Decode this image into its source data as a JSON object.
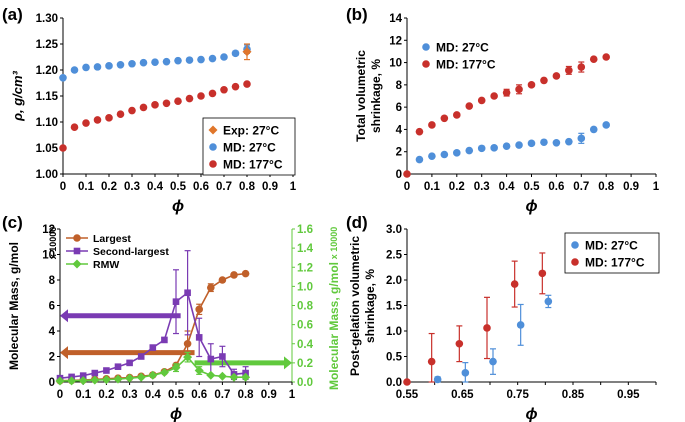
{
  "figure": {
    "panel_labels": [
      "(a)",
      "(b)",
      "(c)",
      "(d)"
    ]
  },
  "colors": {
    "blue": "#4f8fd9",
    "red": "#c8302b",
    "orange": "#e0762b",
    "orange_line": "#c0602a",
    "purple": "#7a3bb3",
    "green": "#61c93d",
    "axis": "#000000",
    "grid_text": "#000000"
  },
  "chart_data": [
    {
      "id": "a",
      "type": "scatter",
      "title": "",
      "xlabel": "ϕ",
      "ylabel": "ρ, g/cm³",
      "xlim": [
        0,
        1
      ],
      "ylim": [
        1.0,
        1.3
      ],
      "xticks": [
        "0",
        "0.1",
        "0.2",
        "0.3",
        "0.4",
        "0.5",
        "0.6",
        "0.7",
        "0.8",
        "0.9",
        "1"
      ],
      "yticks": [
        "1.00",
        "1.05",
        "1.10",
        "1.15",
        "1.20",
        "1.25",
        "1.30"
      ],
      "legend": {
        "placement": "bottom-right",
        "entries": [
          "Exp: 27°C",
          "MD: 27°C",
          "MD: 177°C"
        ]
      },
      "series": [
        {
          "name": "Exp: 27°C",
          "marker": "diamond",
          "color": "orange",
          "x": [
            0.8
          ],
          "y": [
            1.235
          ],
          "err": [
            0.015
          ]
        },
        {
          "name": "MD: 27°C",
          "marker": "circle",
          "color": "blue",
          "x": [
            0,
            0.05,
            0.1,
            0.15,
            0.2,
            0.25,
            0.3,
            0.35,
            0.4,
            0.45,
            0.5,
            0.55,
            0.6,
            0.65,
            0.7,
            0.75,
            0.8
          ],
          "y": [
            1.185,
            1.2,
            1.205,
            1.206,
            1.208,
            1.21,
            1.212,
            1.214,
            1.215,
            1.216,
            1.218,
            1.219,
            1.22,
            1.222,
            1.225,
            1.232,
            1.24
          ],
          "err": [
            0.002,
            0.002,
            0.002,
            0.002,
            0.002,
            0.002,
            0.002,
            0.002,
            0.002,
            0.002,
            0.002,
            0.002,
            0.002,
            0.002,
            0.002,
            0.004,
            0.008
          ]
        },
        {
          "name": "MD: 177°C",
          "marker": "circle",
          "color": "red",
          "x": [
            0,
            0.05,
            0.1,
            0.15,
            0.2,
            0.25,
            0.3,
            0.35,
            0.4,
            0.45,
            0.5,
            0.55,
            0.6,
            0.65,
            0.7,
            0.75,
            0.8
          ],
          "y": [
            1.05,
            1.09,
            1.098,
            1.104,
            1.108,
            1.115,
            1.122,
            1.128,
            1.133,
            1.136,
            1.14,
            1.145,
            1.15,
            1.155,
            1.162,
            1.168,
            1.173
          ],
          "err": [
            0.002,
            0.002,
            0.002,
            0.002,
            0.002,
            0.002,
            0.002,
            0.002,
            0.002,
            0.002,
            0.002,
            0.002,
            0.002,
            0.002,
            0.002,
            0.002,
            0.002
          ]
        }
      ]
    },
    {
      "id": "b",
      "type": "scatter",
      "title": "",
      "xlabel": "ϕ",
      "ylabel_lines": [
        "Total volumetric",
        "shrinkage, %"
      ],
      "xlim": [
        0,
        1
      ],
      "ylim": [
        0,
        14
      ],
      "xticks": [
        "0",
        "0.1",
        "0.2",
        "0.3",
        "0.4",
        "0.5",
        "0.6",
        "0.7",
        "0.8",
        "0.9",
        "1"
      ],
      "yticks": [
        "0",
        "2",
        "4",
        "6",
        "8",
        "10",
        "12",
        "14"
      ],
      "legend": {
        "placement": "top-left",
        "entries": [
          "MD: 27°C",
          "MD: 177°C"
        ]
      },
      "series": [
        {
          "name": "MD: 27°C",
          "marker": "circle",
          "color": "blue",
          "x": [
            0.05,
            0.1,
            0.15,
            0.2,
            0.25,
            0.3,
            0.35,
            0.4,
            0.45,
            0.5,
            0.55,
            0.6,
            0.65,
            0.7,
            0.75,
            0.8
          ],
          "y": [
            1.3,
            1.6,
            1.75,
            1.9,
            2.1,
            2.3,
            2.35,
            2.5,
            2.6,
            2.75,
            2.85,
            2.8,
            2.9,
            3.2,
            4.0,
            4.4
          ],
          "err": [
            0.15,
            0.15,
            0.15,
            0.15,
            0.15,
            0.15,
            0.15,
            0.15,
            0.15,
            0.15,
            0.15,
            0.15,
            0.15,
            0.45,
            0.2,
            0.15
          ]
        },
        {
          "name": "MD: 177°C",
          "marker": "circle",
          "color": "red",
          "x": [
            0,
            0.05,
            0.1,
            0.15,
            0.2,
            0.25,
            0.3,
            0.35,
            0.4,
            0.45,
            0.5,
            0.55,
            0.6,
            0.65,
            0.7,
            0.75,
            0.8
          ],
          "y": [
            0,
            3.8,
            4.4,
            5.0,
            5.3,
            6.1,
            6.6,
            7.0,
            7.3,
            7.6,
            8.0,
            8.4,
            8.8,
            9.3,
            9.6,
            10.3,
            10.5
          ],
          "err": [
            0,
            0.15,
            0.15,
            0.15,
            0.15,
            0.15,
            0.15,
            0.15,
            0.3,
            0.4,
            0.15,
            0.2,
            0.15,
            0.35,
            0.45,
            0.15,
            0.15
          ]
        }
      ]
    },
    {
      "id": "c",
      "type": "line",
      "title": "",
      "xlabel": "ϕ",
      "ylabel_left": "Molecular Mass, g/mol",
      "ylabel_right": "Molecular Mass, g/mol",
      "y_multiplier_label": "x 10000",
      "xlim": [
        0,
        1
      ],
      "ylim_left": [
        0,
        12
      ],
      "ylim_right": [
        0,
        1.6
      ],
      "xticks": [
        "0",
        "0.1",
        "0.2",
        "0.3",
        "0.4",
        "0.5",
        "0.6",
        "0.7",
        "0.8",
        "0.9",
        "1"
      ],
      "yticks_left": [
        "0",
        "2",
        "4",
        "6",
        "8",
        "10",
        "12"
      ],
      "yticks_right": [
        "0.0",
        "0.2",
        "0.4",
        "0.6",
        "0.8",
        "1.0",
        "1.2",
        "1.4",
        "1.6"
      ],
      "legend": {
        "placement": "top-left",
        "entries": [
          "Largest",
          "Second-largest",
          "RMW"
        ]
      },
      "series": [
        {
          "name": "Largest",
          "axis": "left",
          "marker": "circle",
          "color": "orange_line",
          "x": [
            0,
            0.05,
            0.1,
            0.15,
            0.2,
            0.25,
            0.3,
            0.35,
            0.4,
            0.45,
            0.5,
            0.55,
            0.6,
            0.65,
            0.7,
            0.75,
            0.8
          ],
          "y": [
            0.1,
            0.12,
            0.15,
            0.2,
            0.25,
            0.3,
            0.35,
            0.45,
            0.55,
            0.8,
            1.3,
            3.0,
            5.7,
            7.4,
            8.0,
            8.4,
            8.5
          ],
          "err": [
            0,
            0,
            0,
            0,
            0,
            0,
            0,
            0,
            0,
            0,
            0,
            1.0,
            0.4,
            0.3,
            0,
            0,
            0
          ]
        },
        {
          "name": "Second-largest",
          "axis": "left",
          "marker": "square",
          "color": "purple",
          "x": [
            0,
            0.05,
            0.1,
            0.15,
            0.2,
            0.25,
            0.3,
            0.35,
            0.4,
            0.45,
            0.5,
            0.55,
            0.6,
            0.65,
            0.7,
            0.75,
            0.8
          ],
          "y": [
            0.3,
            0.4,
            0.5,
            0.7,
            0.9,
            1.2,
            1.5,
            2.0,
            2.7,
            3.3,
            6.3,
            7.0,
            3.5,
            1.8,
            2.0,
            0.6,
            0.7
          ],
          "err": [
            0,
            0,
            0,
            0,
            0,
            0,
            0,
            0,
            0,
            0,
            2.5,
            3.3,
            1.5,
            1.2,
            0.8,
            0.4,
            0.5
          ]
        },
        {
          "name": "RMW",
          "axis": "right",
          "marker": "diamond",
          "color": "green",
          "x": [
            0,
            0.05,
            0.1,
            0.15,
            0.2,
            0.25,
            0.3,
            0.35,
            0.4,
            0.45,
            0.5,
            0.55,
            0.6,
            0.65,
            0.7,
            0.75,
            0.8
          ],
          "y": [
            0.01,
            0.012,
            0.015,
            0.02,
            0.025,
            0.03,
            0.04,
            0.05,
            0.07,
            0.1,
            0.15,
            0.26,
            0.12,
            0.07,
            0.06,
            0.05,
            0.05
          ],
          "err": [
            0,
            0,
            0,
            0,
            0,
            0,
            0,
            0,
            0,
            0,
            0.04,
            0.05,
            0.04,
            0,
            0,
            0,
            0
          ]
        }
      ],
      "arrows": [
        {
          "series": "Second-largest",
          "direction": "left",
          "from_x": 0.52,
          "to_x": 0.0,
          "y": 5.2,
          "axis": "left"
        },
        {
          "series": "Largest",
          "direction": "left",
          "from_x": 0.58,
          "to_x": 0.0,
          "y": 2.3,
          "axis": "left"
        },
        {
          "series": "RMW",
          "direction": "right",
          "from_x": 0.58,
          "to_x": 1.0,
          "y": 0.2,
          "axis": "right"
        }
      ]
    },
    {
      "id": "d",
      "type": "scatter",
      "title": "",
      "xlabel": "ϕ",
      "ylabel_lines": [
        "Post-gelation volumetric",
        "shrinkage, %"
      ],
      "xlim": [
        0.55,
        1.0
      ],
      "ylim": [
        0,
        3.0
      ],
      "xticks": [
        "0.55",
        "0.65",
        "0.75",
        "0.85",
        "0.95"
      ],
      "yticks": [
        "0.0",
        "0.5",
        "1.0",
        "1.5",
        "2.0",
        "2.5",
        "3.0"
      ],
      "legend": {
        "placement": "top-right",
        "entries": [
          "MD: 27°C",
          "MD: 177°C"
        ]
      },
      "series": [
        {
          "name": "MD: 27°C",
          "marker": "circle",
          "color": "blue",
          "x": [
            0.6,
            0.65,
            0.7,
            0.75,
            0.8
          ],
          "y": [
            0.05,
            0.18,
            0.4,
            1.12,
            1.58
          ],
          "err": [
            0.05,
            0.2,
            0.25,
            0.4,
            0.12
          ]
        },
        {
          "name": "MD: 177°C",
          "marker": "circle",
          "color": "red",
          "x": [
            0.55,
            0.6,
            0.65,
            0.7,
            0.75,
            0.8
          ],
          "y": [
            0,
            0.4,
            0.75,
            1.06,
            1.92,
            2.13
          ],
          "err": [
            0,
            0.55,
            0.35,
            0.6,
            0.45,
            0.4
          ]
        }
      ]
    }
  ]
}
